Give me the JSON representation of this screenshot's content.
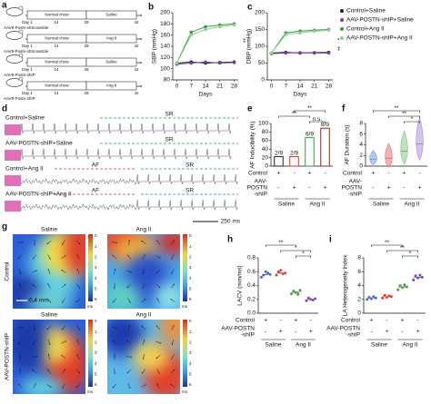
{
  "panel_a": {
    "label": "a",
    "rows": [
      {
        "days": [
          "Day 1",
          "14",
          "28",
          "42"
        ],
        "phases": [
          "Normal chow",
          "Saline"
        ],
        "vector": "AAV9-Postn-shScramble"
      },
      {
        "days": [
          "Day 1",
          "14",
          "28",
          "42"
        ],
        "phases": [
          "Normal chow",
          "Ang II"
        ],
        "vector": "AAV9-Postn-shScramble"
      },
      {
        "days": [
          "Day 1",
          "14",
          "28",
          "42"
        ],
        "phases": [
          "Normal chow",
          "Saline"
        ],
        "vector": "AAV9-Postn-shIP"
      },
      {
        "days": [
          "Day 1",
          "14",
          "28",
          "42"
        ],
        "phases": [
          "Normal chow",
          "Ang II"
        ],
        "vector": "AAV9-Postn-shIP"
      }
    ]
  },
  "panel_d": {
    "label": "d",
    "traces": [
      {
        "name": "Control+Saline",
        "segments": [
          "SR"
        ]
      },
      {
        "name": "AAV-POSTN-shIP+Saline",
        "segments": [
          "SR"
        ]
      },
      {
        "name": "Control+Ang II",
        "segments": [
          "AF",
          "SR"
        ]
      },
      {
        "name": "AAV-POSTN-shIP+Ang II",
        "segments": [
          "AF",
          "SR"
        ]
      }
    ],
    "scale_bar": "250 ms"
  },
  "panel_g": {
    "label": "g",
    "columns": [
      "Saline",
      "Ang II"
    ],
    "rows": [
      "Control",
      "AAV-POSTN-shIP"
    ],
    "colorbar_ticks": [
      "0",
      "1",
      "2",
      "3",
      "4",
      "5",
      "6"
    ],
    "colorbar_unit": "ms",
    "scale_bar": "0.4 mm"
  },
  "chart_data": [
    {
      "type": "line",
      "label": "b",
      "y_label": "SBP (mmHg)",
      "x_label": "Days",
      "x": [
        0,
        7,
        14,
        21,
        28
      ],
      "xlim": [
        -2,
        30
      ],
      "xticks": [
        0,
        7,
        14,
        21,
        28
      ],
      "ylim": [
        80,
        200
      ],
      "yticks": [
        80,
        100,
        120,
        140,
        160,
        180,
        200
      ],
      "series": [
        {
          "color": "#222222",
          "values": [
            110,
            112,
            110,
            111,
            112
          ]
        },
        {
          "color": "#7b3fa0",
          "values": [
            108,
            110,
            112,
            110,
            111
          ]
        },
        {
          "color": "#3a9a3a",
          "values": [
            110,
            165,
            175,
            178,
            180
          ]
        },
        {
          "color": "#8fd18f",
          "values": [
            110,
            160,
            170,
            175,
            178
          ]
        }
      ],
      "annotations": [
        "‡"
      ]
    },
    {
      "type": "line",
      "label": "c",
      "y_label": "DBP (mmHg)",
      "x_label": "Days",
      "x": [
        0,
        7,
        14,
        21,
        28
      ],
      "xlim": [
        -2,
        30
      ],
      "xticks": [
        0,
        7,
        14,
        21,
        28
      ],
      "ylim": [
        0,
        200
      ],
      "yticks": [
        0,
        50,
        100,
        150,
        200
      ],
      "series": [
        {
          "name": "Control+Saline",
          "color": "#222222",
          "values": [
            80,
            82,
            80,
            81,
            82
          ]
        },
        {
          "name": "AAV-POSTN-shIP+Saline",
          "color": "#7b3fa0",
          "values": [
            78,
            80,
            81,
            80,
            80
          ]
        },
        {
          "name": "Control+Ang II",
          "color": "#3a9a3a",
          "values": [
            80,
            140,
            145,
            148,
            150
          ]
        },
        {
          "name": "AAV-POSTN-shIP+Ang II",
          "color": "#8fd18f",
          "values": [
            80,
            135,
            140,
            145,
            148
          ]
        }
      ],
      "annotations": [
        "*",
        "‡"
      ]
    },
    {
      "type": "bar",
      "label": "e",
      "y_label": "AF Inducibility (%)",
      "ylim": [
        0,
        100
      ],
      "yticks": [
        0,
        20,
        40,
        60,
        80,
        100
      ],
      "values": [
        22.2,
        22.2,
        66.7,
        88.9
      ],
      "value_labels": [
        "2/9",
        "2/9",
        "6/9",
        "8/9"
      ],
      "colors": [
        "#222222",
        "#e0302a",
        "#3a9a3a",
        "#8a2a20"
      ],
      "significance": [
        "**",
        "n.s.",
        "**"
      ],
      "groups": {
        "rows": [
          {
            "name": [
              "Control"
            ],
            "signs": [
              "+",
              "-",
              "+",
              "-"
            ]
          },
          {
            "name": [
              "AAV-",
              "POSTN",
              "-shIP"
            ],
            "signs": [
              "-",
              "+",
              "-",
              "+"
            ]
          }
        ],
        "treatments": [
          "Saline",
          "Ang II"
        ]
      }
    },
    {
      "type": "violin",
      "label": "f",
      "y_label": "AF Duration (s)",
      "ylim": [
        0,
        8
      ],
      "yticks": [
        0,
        2,
        4,
        6,
        8
      ],
      "values": [
        1.3,
        1.5,
        2.8,
        4.2
      ],
      "colors": [
        "#7fa8e0",
        "#f08080",
        "#8fd18f",
        "#b89ae0"
      ],
      "significance": [
        "**",
        "**",
        "*"
      ],
      "groups": {
        "rows": [
          {
            "name": [
              "Control"
            ],
            "signs": [
              "+",
              "-",
              "+",
              "-"
            ]
          },
          {
            "name": [
              "AAV-",
              "POSTN",
              "-shIP"
            ],
            "signs": [
              "-",
              "+",
              "-",
              "+"
            ]
          }
        ],
        "treatments": [
          "Saline",
          "Ang II"
        ]
      }
    },
    {
      "type": "dot",
      "label": "h",
      "y_label": "LACV (mm/ms)",
      "ylim": [
        0,
        0.8
      ],
      "yticks": [
        {
          "value": 0,
          "label": "0.0"
        },
        0.2,
        0.4,
        0.6,
        0.8
      ],
      "values": [
        0.56,
        0.58,
        0.3,
        0.2
      ],
      "points": [
        [
          0.52,
          0.55,
          0.6,
          0.58,
          0.56
        ],
        [
          0.55,
          0.6,
          0.62,
          0.57,
          0.58
        ],
        [
          0.28,
          0.32,
          0.3,
          0.27,
          0.33
        ],
        [
          0.18,
          0.22,
          0.2,
          0.19,
          0.21
        ]
      ],
      "colors": [
        "#3a5fc8",
        "#e0302a",
        "#3a9a3a",
        "#7b3fa0"
      ],
      "significance": [
        "**",
        "*",
        "*"
      ],
      "groups": {
        "rows": [
          {
            "name": [
              "Control"
            ],
            "signs": [
              "+",
              "-",
              "+",
              "-"
            ]
          },
          {
            "name": [
              "AAV-POSTN",
              "-shIP"
            ],
            "signs": [
              "-",
              "+",
              "-",
              "+"
            ]
          }
        ],
        "treatments": [
          "Saline",
          "Ang II"
        ]
      }
    },
    {
      "type": "dot",
      "label": "i",
      "y_label": "LA Heterogeneity Index",
      "ylim": [
        0,
        8
      ],
      "yticks": [
        0,
        2,
        4,
        6,
        8
      ],
      "values": [
        2.2,
        2.4,
        3.8,
        5.2
      ],
      "points": [
        [
          2.0,
          2.3,
          2.1,
          2.4,
          2.2
        ],
        [
          2.2,
          2.6,
          2.3,
          2.5,
          2.4
        ],
        [
          3.4,
          4.0,
          3.7,
          4.1,
          3.8
        ],
        [
          4.8,
          5.4,
          5.1,
          5.5,
          5.2
        ]
      ],
      "colors": [
        "#3a5fc8",
        "#e0302a",
        "#3a9a3a",
        "#7b3fa0"
      ],
      "significance": [
        "**",
        "**",
        "*"
      ],
      "groups": {
        "rows": [
          {
            "name": [
              "Control"
            ],
            "signs": [
              "+",
              "-",
              "+",
              "-"
            ]
          },
          {
            "name": [
              "AAV-POSTN",
              "-shIP"
            ],
            "signs": [
              "-",
              "+",
              "-",
              "+"
            ]
          }
        ],
        "treatments": [
          "Saline",
          "Ang II"
        ]
      }
    }
  ]
}
